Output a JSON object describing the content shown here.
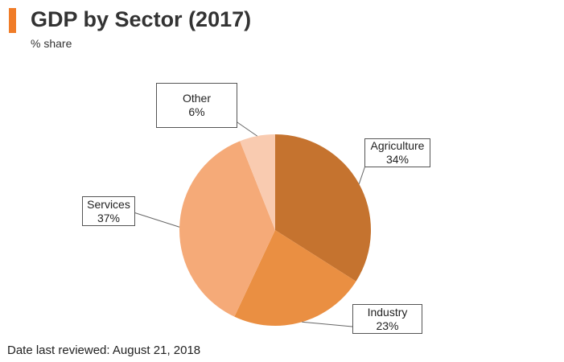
{
  "header": {
    "title": "GDP by Sector (2017)",
    "subtitle": "% share",
    "accent_color": "#f07c28"
  },
  "footer": {
    "text": "Date last reviewed: August 21, 2018"
  },
  "chart_data": {
    "type": "pie",
    "title": "GDP by Sector (2017)",
    "subtitle": "% share",
    "start_angle_deg": 0,
    "direction": "clockwise",
    "slices": [
      {
        "label": "Agriculture",
        "value": 34,
        "value_label": "34%",
        "color": "#c5732f"
      },
      {
        "label": "Industry",
        "value": 23,
        "value_label": "23%",
        "color": "#ea8f42"
      },
      {
        "label": "Services",
        "value": 37,
        "value_label": "37%",
        "color": "#f5aa78"
      },
      {
        "label": "Other",
        "value": 6,
        "value_label": "6%",
        "color": "#f9cbb0"
      }
    ]
  }
}
